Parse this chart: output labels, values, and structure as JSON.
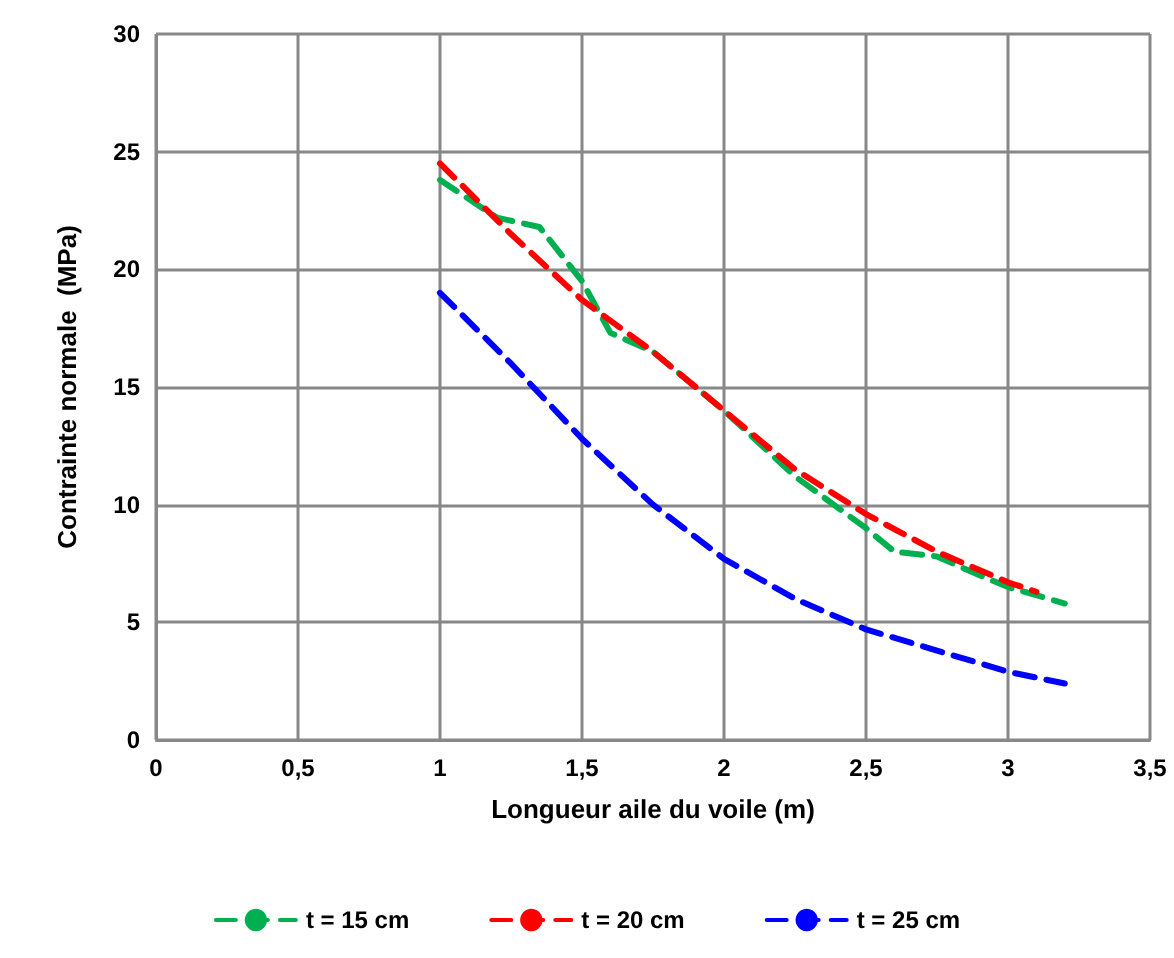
{
  "chart_data": {
    "type": "line",
    "xlabel": "Longueur aile du voile (m)",
    "ylabel": "Contrainte normale  (MPa)",
    "xlim": [
      0,
      3.5
    ],
    "xticks": [
      0,
      {
        "value": 0.5,
        "label": "0,5"
      },
      1,
      {
        "value": 1.5,
        "label": "1,5"
      },
      2,
      {
        "value": 2.5,
        "label": "2,5"
      },
      3,
      {
        "value": 3.5,
        "label": "3,5"
      }
    ],
    "ylim": [
      0,
      30
    ],
    "yticks": [
      0,
      5,
      10,
      15,
      20,
      25,
      30
    ],
    "grid": true,
    "legend": "bottom",
    "marker": "none",
    "series": [
      {
        "name": "t = 15 cm",
        "color": "#00b050",
        "line_style": "dashed",
        "x": [
          1,
          1.2,
          1.35,
          1.5,
          1.6,
          1.75,
          1.9,
          2,
          2.25,
          2.5,
          2.6,
          2.75,
          2.9,
          3,
          3.2
        ],
        "values": [
          23.8,
          22.2,
          21.8,
          19.5,
          17.3,
          16.5,
          15,
          14,
          11.2,
          9,
          8,
          7.8,
          7,
          6.5,
          5.8
        ]
      },
      {
        "name": "t = 20 cm",
        "color": "#ff0000",
        "line_style": "dashed",
        "x": [
          1,
          1.25,
          1.5,
          1.75,
          2,
          2.25,
          2.5,
          2.75,
          3,
          3.1
        ],
        "values": [
          24.5,
          21.5,
          18.7,
          16.5,
          14,
          11.5,
          9.6,
          8,
          6.7,
          6.3
        ]
      },
      {
        "name": "t = 25 cm",
        "color": "#0000ff",
        "line_style": "dashed",
        "x": [
          1,
          1.25,
          1.5,
          1.75,
          2,
          2.25,
          2.5,
          2.75,
          3,
          3.2
        ],
        "values": [
          19,
          16,
          12.8,
          10,
          7.7,
          6,
          4.7,
          3.8,
          2.9,
          2.4
        ]
      }
    ]
  }
}
